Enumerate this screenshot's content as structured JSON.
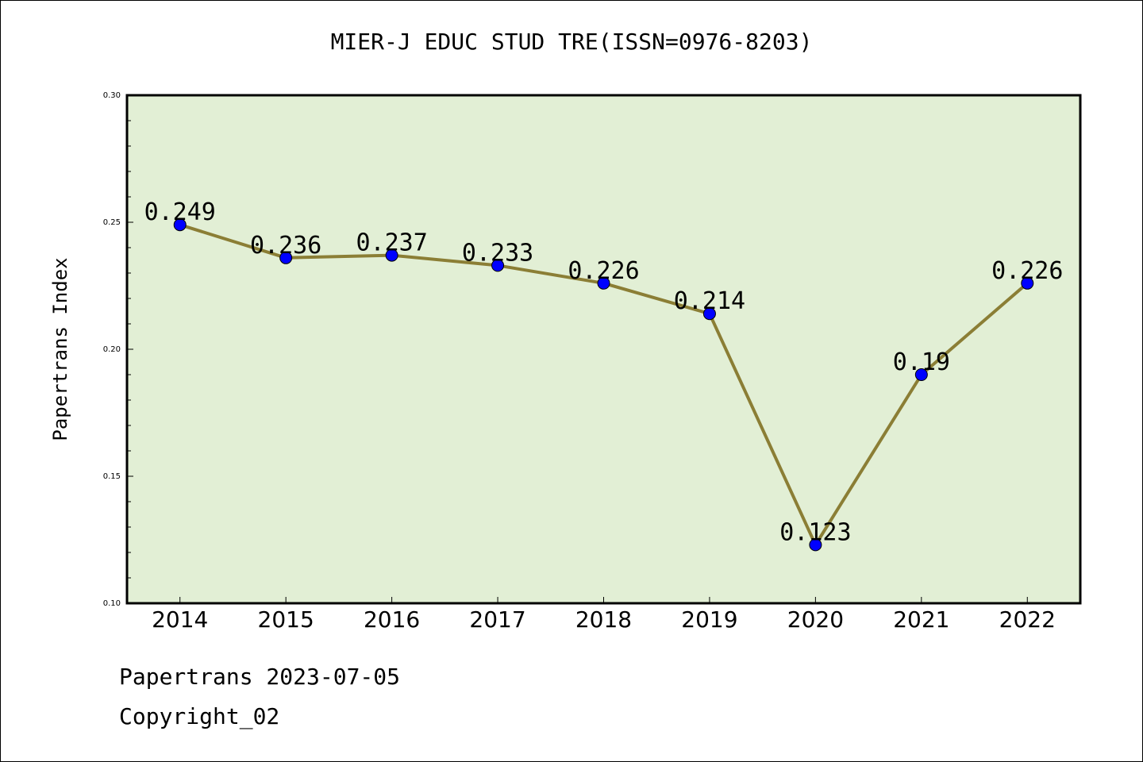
{
  "chart_data": {
    "type": "line",
    "title": "MIER-J EDUC STUD TRE(ISSN=0976-8203)",
    "xlabel": "",
    "ylabel": "Papertrans Index",
    "categories": [
      "2014",
      "2015",
      "2016",
      "2017",
      "2018",
      "2019",
      "2020",
      "2021",
      "2022"
    ],
    "series": [
      {
        "values": [
          0.249,
          0.236,
          0.237,
          0.233,
          0.226,
          0.214,
          0.123,
          0.19,
          0.226
        ]
      }
    ],
    "data_labels": [
      "0.249",
      "0.236",
      "0.237",
      "0.233",
      "0.226",
      "0.214",
      "0.123",
      "0.19",
      "0.226"
    ],
    "ylim": [
      0.1,
      0.3
    ],
    "yticks": [
      "0.10",
      "0.15",
      "0.20",
      "0.25",
      "0.30"
    ],
    "colors": {
      "plot_bg": "#e2efd5",
      "line": "#8b7e35",
      "marker": "#0000ff"
    }
  },
  "footer": {
    "line1": "Papertrans 2023-07-05",
    "line2": "Copyright_02"
  }
}
